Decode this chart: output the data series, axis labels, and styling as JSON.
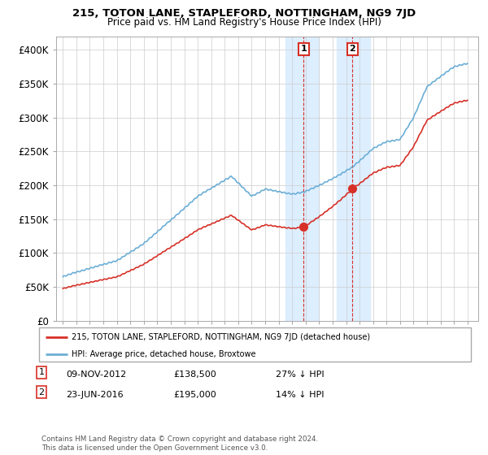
{
  "title": "215, TOTON LANE, STAPLEFORD, NOTTINGHAM, NG9 7JD",
  "subtitle": "Price paid vs. HM Land Registry's House Price Index (HPI)",
  "legend_line1": "215, TOTON LANE, STAPLEFORD, NOTTINGHAM, NG9 7JD (detached house)",
  "legend_line2": "HPI: Average price, detached house, Broxtowe",
  "sale1_date": "09-NOV-2012",
  "sale1_price": "£138,500",
  "sale1_hpi": "27% ↓ HPI",
  "sale2_date": "23-JUN-2016",
  "sale2_price": "£195,000",
  "sale2_hpi": "14% ↓ HPI",
  "footer": "Contains HM Land Registry data © Crown copyright and database right 2024.\nThis data is licensed under the Open Government Licence v3.0.",
  "hpi_color": "#6baed6",
  "property_color": "#d73027",
  "marker_color": "#d73027",
  "annotation_box_color": "#d73027",
  "ylim": [
    0,
    420000
  ],
  "yticks": [
    0,
    50000,
    100000,
    150000,
    200000,
    250000,
    300000,
    350000,
    400000
  ],
  "ytick_labels": [
    "£0",
    "£50K",
    "£100K",
    "£150K",
    "£200K",
    "£250K",
    "£300K",
    "£350K",
    "£400K"
  ],
  "sale1_x": 2012.86,
  "sale1_y": 138500,
  "sale2_x": 2016.47,
  "sale2_y": 195000,
  "highlight_xmin1": 2011.5,
  "highlight_xmax1": 2014.0,
  "highlight_xmin2": 2015.3,
  "highlight_xmax2": 2017.8,
  "highlight_color": "#ddeeff",
  "xmin": 1994.5,
  "xmax": 2025.8
}
